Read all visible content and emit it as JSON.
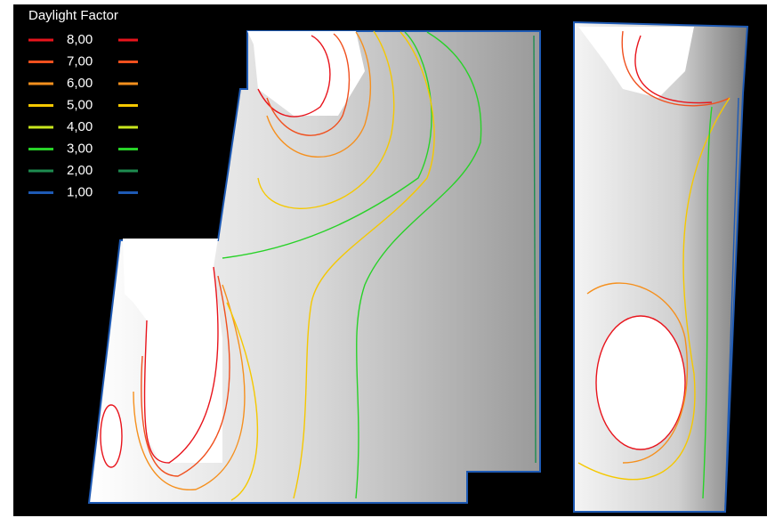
{
  "legend": {
    "title": "Daylight Factor",
    "items": [
      {
        "label": "8,00",
        "color": "#e8141c"
      },
      {
        "label": "7,00",
        "color": "#f0501e"
      },
      {
        "label": "6,00",
        "color": "#f5901e"
      },
      {
        "label": "5,00",
        "color": "#f5c800"
      },
      {
        "label": "4,00",
        "color": "#c8e61e"
      },
      {
        "label": "3,00",
        "color": "#28d228"
      },
      {
        "label": "2,00",
        "color": "#1e8c50"
      },
      {
        "label": "1,00",
        "color": "#1e5ab4"
      }
    ]
  }
}
